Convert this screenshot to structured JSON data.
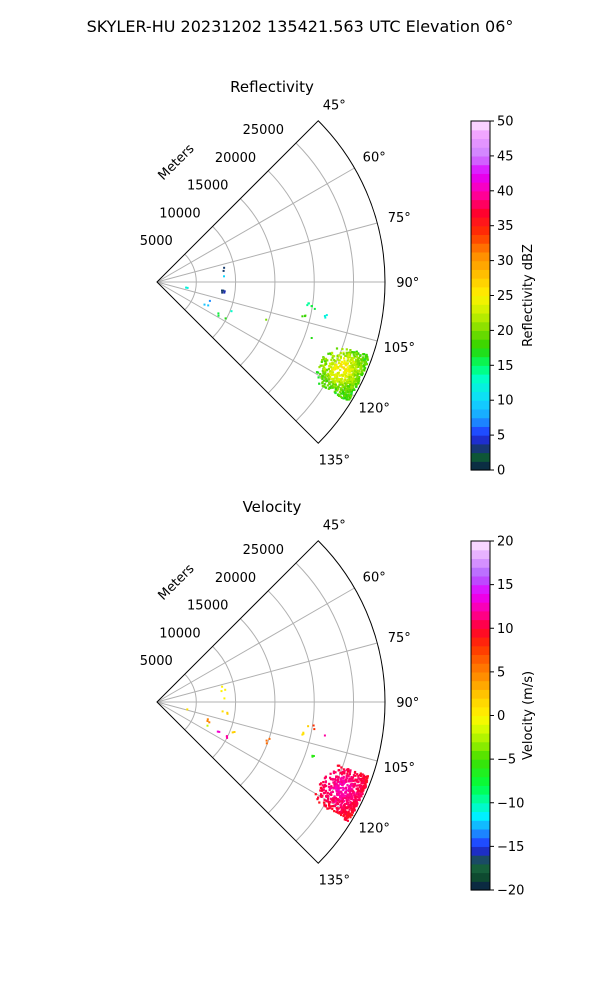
{
  "figure_title": "SKYLER-HU  20231202  135421.563 UTC Elevation 06°",
  "colors": {
    "grid": "#b0b0b0",
    "axis": "#000000",
    "background": "#ffffff"
  },
  "chart_data": [
    {
      "type": "polar-sector",
      "title": "Reflectivity",
      "theta_range_deg": [
        45,
        135
      ],
      "theta_ticks": [
        "45°",
        "60°",
        "75°",
        "90°",
        "105°",
        "120°",
        "135°"
      ],
      "r_range": [
        0,
        29000
      ],
      "r_label": "Meters",
      "r_ticks": [
        "5000",
        "10000",
        "15000",
        "20000",
        "25000"
      ],
      "grid": true,
      "colorbar": {
        "label": "Reflectivity dBZ",
        "range": [
          0,
          50
        ],
        "ticks": [
          "0",
          "5",
          "10",
          "15",
          "20",
          "25",
          "30",
          "35",
          "40",
          "45",
          "50"
        ],
        "stops": [
          {
            "v": 0,
            "c": "#0a1a4a"
          },
          {
            "v": 2,
            "c": "#0e5a35"
          },
          {
            "v": 3.5,
            "c": "#1a2b8a"
          },
          {
            "v": 5,
            "c": "#2030ff"
          },
          {
            "v": 7.5,
            "c": "#1aa0ff"
          },
          {
            "v": 10,
            "c": "#10d8ff"
          },
          {
            "v": 13,
            "c": "#00ffcc"
          },
          {
            "v": 15,
            "c": "#00ff6a"
          },
          {
            "v": 17.5,
            "c": "#2ad400"
          },
          {
            "v": 20,
            "c": "#7adc00"
          },
          {
            "v": 22.5,
            "c": "#c8f000"
          },
          {
            "v": 25,
            "c": "#fff200"
          },
          {
            "v": 28,
            "c": "#ffc000"
          },
          {
            "v": 31,
            "c": "#ff8a00"
          },
          {
            "v": 34,
            "c": "#ff3000"
          },
          {
            "v": 37,
            "c": "#ff0030"
          },
          {
            "v": 40,
            "c": "#ff00b0"
          },
          {
            "v": 42.5,
            "c": "#e000ff"
          },
          {
            "v": 45,
            "c": "#cc80ff"
          },
          {
            "v": 48,
            "c": "#f0a0ff"
          },
          {
            "v": 50,
            "c": "#ffe8ff"
          }
        ]
      },
      "echoes": [
        {
          "r": 8300,
          "az": 85,
          "v": 10
        },
        {
          "r": 8500,
          "az": 78,
          "v": 3
        },
        {
          "r": 8300,
          "az": 98,
          "v": 3
        },
        {
          "r": 8700,
          "az": 97,
          "v": 4
        },
        {
          "r": 3800,
          "az": 103,
          "v": 12
        },
        {
          "r": 6800,
          "az": 110,
          "v": 7
        },
        {
          "r": 6800,
          "az": 115,
          "v": 9
        },
        {
          "r": 8700,
          "az": 117,
          "v": 16
        },
        {
          "r": 9600,
          "az": 116,
          "v": 17
        },
        {
          "r": 10300,
          "az": 112,
          "v": 13
        },
        {
          "r": 14800,
          "az": 109,
          "v": 20
        },
        {
          "r": 19400,
          "az": 98,
          "v": 14
        },
        {
          "r": 20000,
          "az": 99,
          "v": 16
        },
        {
          "r": 19000,
          "az": 102,
          "v": 18
        },
        {
          "r": 21800,
          "az": 101,
          "v": 12
        },
        {
          "r": 20800,
          "az": 109,
          "v": 17
        }
      ],
      "storm": {
        "az_range": [
          109,
          122
        ],
        "r_range": [
          23000,
          28500
        ],
        "core": {
          "r": 25800,
          "az": 115
        },
        "value_min": 16,
        "value_max": 27
      }
    },
    {
      "type": "polar-sector",
      "title": "Velocity",
      "theta_range_deg": [
        45,
        135
      ],
      "theta_ticks": [
        "45°",
        "60°",
        "75°",
        "90°",
        "105°",
        "120°",
        "135°"
      ],
      "r_range": [
        0,
        29000
      ],
      "r_label": "Meters",
      "r_ticks": [
        "5000",
        "10000",
        "15000",
        "20000",
        "25000"
      ],
      "grid": true,
      "colorbar": {
        "label": "Velocity (m/s)",
        "range": [
          -20,
          20
        ],
        "ticks": [
          "−20",
          "−15",
          "−10",
          "−5",
          "0",
          "5",
          "10",
          "15",
          "20"
        ],
        "stops": [
          {
            "v": -20,
            "c": "#0a1a4a"
          },
          {
            "v": -18.5,
            "c": "#0e4a30"
          },
          {
            "v": -17,
            "c": "#1a6a40"
          },
          {
            "v": -16,
            "c": "#1a2b8a"
          },
          {
            "v": -15,
            "c": "#2030ff"
          },
          {
            "v": -13,
            "c": "#1aa0ff"
          },
          {
            "v": -11.5,
            "c": "#00f0ff"
          },
          {
            "v": -10,
            "c": "#00ffb0"
          },
          {
            "v": -8,
            "c": "#00ff40"
          },
          {
            "v": -5,
            "c": "#40e000"
          },
          {
            "v": -3,
            "c": "#a0f000"
          },
          {
            "v": -1,
            "c": "#e8ff00"
          },
          {
            "v": 0,
            "c": "#fff200"
          },
          {
            "v": 2,
            "c": "#ffd000"
          },
          {
            "v": 4,
            "c": "#ff9a00"
          },
          {
            "v": 6,
            "c": "#ff6a00"
          },
          {
            "v": 8,
            "c": "#ff3000"
          },
          {
            "v": 10,
            "c": "#ff0030"
          },
          {
            "v": 12,
            "c": "#ff00a0"
          },
          {
            "v": 14,
            "c": "#e800ff"
          },
          {
            "v": 16,
            "c": "#b060ff"
          },
          {
            "v": 18,
            "c": "#e0a0ff"
          },
          {
            "v": 20,
            "c": "#ffe8ff"
          }
        ]
      },
      "echoes": [
        {
          "r": 8300,
          "az": 85,
          "v": 0
        },
        {
          "r": 8500,
          "az": 78,
          "v": 0
        },
        {
          "r": 8300,
          "az": 98,
          "v": 1
        },
        {
          "r": 8700,
          "az": 97,
          "v": 2
        },
        {
          "r": 3800,
          "az": 103,
          "v": 1
        },
        {
          "r": 6800,
          "az": 110,
          "v": 5
        },
        {
          "r": 6800,
          "az": 115,
          "v": -2
        },
        {
          "r": 8700,
          "az": 117,
          "v": 13
        },
        {
          "r": 9600,
          "az": 116,
          "v": 12
        },
        {
          "r": 10300,
          "az": 112,
          "v": 2
        },
        {
          "r": 14800,
          "az": 109,
          "v": 6
        },
        {
          "r": 19400,
          "az": 98,
          "v": 2
        },
        {
          "r": 20000,
          "az": 99,
          "v": 8
        },
        {
          "r": 19000,
          "az": 102,
          "v": 1
        },
        {
          "r": 21800,
          "az": 101,
          "v": 12
        },
        {
          "r": 20800,
          "az": 109,
          "v": -6
        }
      ],
      "storm": {
        "az_range": [
          109,
          122
        ],
        "r_range": [
          23000,
          28500
        ],
        "core": {
          "r": 25800,
          "az": 115
        },
        "value_min": 9,
        "value_max": 13
      }
    }
  ]
}
